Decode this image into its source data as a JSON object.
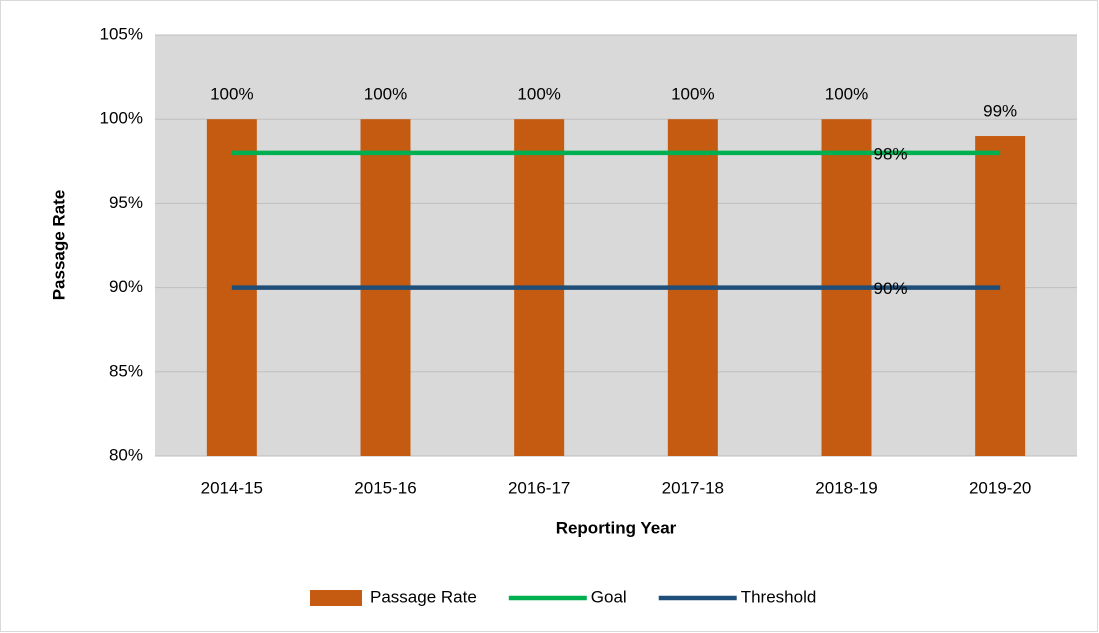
{
  "chart_data": {
    "type": "bar",
    "x_label": "Reporting Year",
    "y_label": "Passage Rate",
    "categories": [
      "2014-15",
      "2015-16",
      "2016-17",
      "2017-18",
      "2018-19",
      "2019-20"
    ],
    "series": [
      {
        "name": "Passage Rate",
        "type": "bar",
        "color": "#c55a11",
        "values": [
          100,
          100,
          100,
          100,
          100,
          99
        ],
        "value_labels": [
          "100%",
          "100%",
          "100%",
          "100%",
          "100%",
          "99%"
        ]
      },
      {
        "name": "Goal",
        "type": "line",
        "color": "#00b050",
        "values": [
          98,
          98,
          98,
          98,
          98,
          98
        ],
        "value_labels": [
          null,
          null,
          null,
          null,
          "98%",
          null
        ]
      },
      {
        "name": "Threshold",
        "type": "line",
        "color": "#1f4e79",
        "values": [
          90,
          90,
          90,
          90,
          90,
          90
        ],
        "value_labels": [
          null,
          null,
          null,
          null,
          "90%",
          null
        ]
      }
    ],
    "ylim": [
      80,
      105
    ],
    "yticks": [
      {
        "value": 80,
        "label": "80%"
      },
      {
        "value": 85,
        "label": "85%"
      },
      {
        "value": 90,
        "label": "90%"
      },
      {
        "value": 95,
        "label": "95%"
      },
      {
        "value": 100,
        "label": "100%"
      },
      {
        "value": 105,
        "label": "105%"
      }
    ],
    "grid": true,
    "legend": "bottom"
  }
}
